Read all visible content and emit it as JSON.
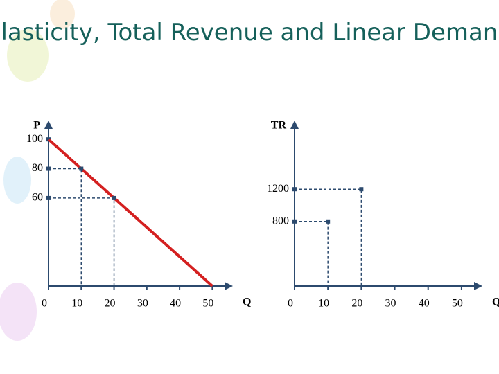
{
  "title": "Elasticity, Total Revenue and Linear Demand",
  "chart_data": [
    {
      "type": "line",
      "y_label": "P",
      "x_label": "Q",
      "x": [
        0,
        50
      ],
      "values": [
        100,
        0
      ],
      "color": "#d42020",
      "points": {
        "x": [
          10,
          20
        ],
        "values": [
          80,
          60
        ]
      },
      "xlim": [
        0,
        55
      ],
      "ylim": [
        0,
        110
      ],
      "xticks": [
        0,
        10,
        20,
        30,
        40,
        50
      ],
      "yticks": [
        60,
        80,
        100
      ]
    },
    {
      "type": "scatter",
      "y_label": "TR",
      "x_label": "Q",
      "points": {
        "x": [
          10,
          20
        ],
        "values": [
          800,
          1200
        ]
      },
      "xlim": [
        0,
        55
      ],
      "ylim": [
        0,
        2000
      ],
      "xticks": [
        0,
        10,
        20,
        30,
        40,
        50
      ],
      "yticks": [
        800,
        1200
      ]
    }
  ]
}
